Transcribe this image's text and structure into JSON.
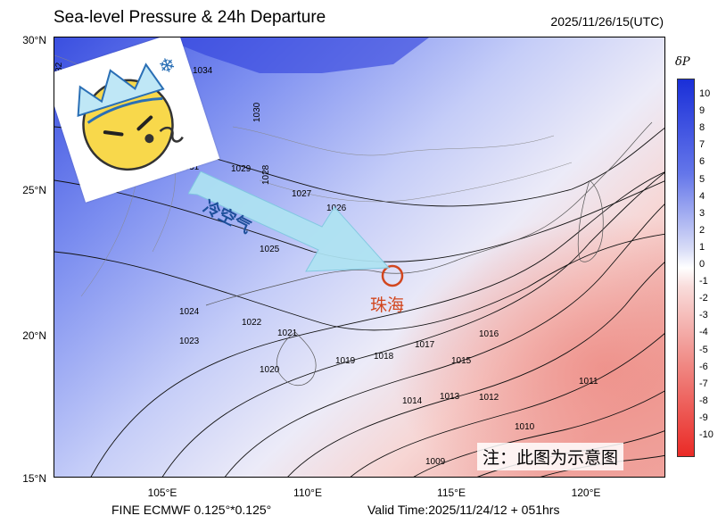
{
  "header": {
    "title": "Sea-level Pressure & 24h Departure",
    "datetime": "2025/11/26/15(UTC)"
  },
  "axes": {
    "lat_labels": [
      "30°N",
      "25°N",
      "20°N",
      "15°N"
    ],
    "lon_labels": [
      "105°E",
      "110°E",
      "115°E",
      "120°E"
    ]
  },
  "footer": {
    "model": "FINE ECMWF 0.125°*0.125°",
    "valid_time": "Valid Time:2025/11/24/12 + 051hrs"
  },
  "colorbar": {
    "title": "δP",
    "ticks": [
      "10",
      "9",
      "8",
      "7",
      "6",
      "5",
      "4",
      "3",
      "2",
      "1",
      "0",
      "-1",
      "-2",
      "-3",
      "-4",
      "-5",
      "-6",
      "-7",
      "-8",
      "-9",
      "-10"
    ]
  },
  "isobar_labels": [
    "1032",
    "1034",
    "1030",
    "1031",
    "1029",
    "1028",
    "1027",
    "1026",
    "1025",
    "1024",
    "1023",
    "1022",
    "1021",
    "1020",
    "1019",
    "1018",
    "1017",
    "1016",
    "1015",
    "1014",
    "1013",
    "1012",
    "1011",
    "1010",
    "1009"
  ],
  "annotations": {
    "cold_air": "冷空气",
    "city": "珠海",
    "note": "注：此图为示意图"
  },
  "colors": {
    "high_pressure": "#3a4fe0",
    "low_pressure": "#f2a5a0",
    "city_marker": "#d2461e",
    "arrow": "#aee3f2"
  },
  "icon": "cold-emoji-icon"
}
